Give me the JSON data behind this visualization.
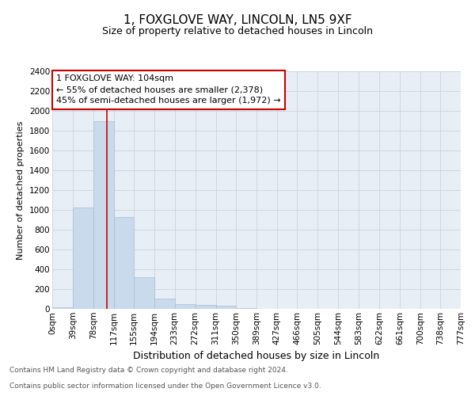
{
  "title": "1, FOXGLOVE WAY, LINCOLN, LN5 9XF",
  "subtitle": "Size of property relative to detached houses in Lincoln",
  "xlabel": "Distribution of detached houses by size in Lincoln",
  "ylabel": "Number of detached properties",
  "bar_edges": [
    0,
    39,
    78,
    117,
    155,
    194,
    233,
    272,
    311,
    350,
    389,
    427,
    466,
    505,
    544,
    583,
    622,
    661,
    700,
    738,
    777
  ],
  "bar_heights": [
    20,
    1025,
    1900,
    930,
    320,
    105,
    50,
    40,
    30,
    8,
    0,
    0,
    0,
    0,
    0,
    0,
    0,
    0,
    0,
    0
  ],
  "bar_color": "#c8daec",
  "bar_edgecolor": "#aabdd4",
  "vline_x": 104,
  "vline_color": "#cc0000",
  "ylim": [
    0,
    2400
  ],
  "yticks": [
    0,
    200,
    400,
    600,
    800,
    1000,
    1200,
    1400,
    1600,
    1800,
    2000,
    2200,
    2400
  ],
  "xtick_labels": [
    "0sqm",
    "39sqm",
    "78sqm",
    "117sqm",
    "155sqm",
    "194sqm",
    "233sqm",
    "272sqm",
    "311sqm",
    "350sqm",
    "389sqm",
    "427sqm",
    "466sqm",
    "505sqm",
    "544sqm",
    "583sqm",
    "622sqm",
    "661sqm",
    "700sqm",
    "738sqm",
    "777sqm"
  ],
  "annotation_text": "1 FOXGLOVE WAY: 104sqm\n← 55% of detached houses are smaller (2,378)\n45% of semi-detached houses are larger (1,972) →",
  "annotation_box_facecolor": "#ffffff",
  "annotation_box_edgecolor": "#cc0000",
  "footer_line1": "Contains HM Land Registry data © Crown copyright and database right 2024.",
  "footer_line2": "Contains public sector information licensed under the Open Government Licence v3.0.",
  "background_color": "#ffffff",
  "plot_bg_color": "#e8eef5",
  "grid_color": "#c8d4e0",
  "title_fontsize": 11,
  "subtitle_fontsize": 9,
  "xlabel_fontsize": 9,
  "ylabel_fontsize": 8,
  "tick_fontsize": 7.5,
  "annotation_fontsize": 8,
  "footer_fontsize": 6.5
}
